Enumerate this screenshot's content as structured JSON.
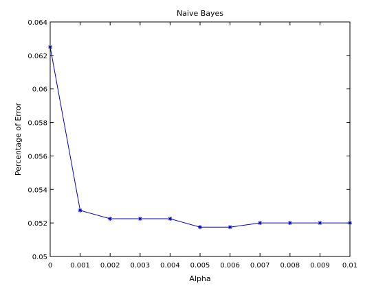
{
  "chart_data": {
    "type": "line",
    "title": "Naive Bayes",
    "xlabel": "Alpha",
    "ylabel": "Percentage of Error",
    "xlim": [
      0,
      0.01
    ],
    "ylim": [
      0.05,
      0.064
    ],
    "x_ticks": [
      0,
      0.001,
      0.002,
      0.003,
      0.004,
      0.005,
      0.006,
      0.007,
      0.008,
      0.009,
      0.01
    ],
    "x_tick_labels": [
      "0",
      "0.001",
      "0.002",
      "0.003",
      "0.004",
      "0.005",
      "0.006",
      "0.007",
      "0.008",
      "0.009",
      "0.01"
    ],
    "y_ticks": [
      0.05,
      0.052,
      0.054,
      0.056,
      0.058,
      0.06,
      0.062,
      0.064
    ],
    "y_tick_labels": [
      "0.05",
      "0.052",
      "0.054",
      "0.056",
      "0.058",
      "0.06",
      "0.062",
      "0.064"
    ],
    "grid": false,
    "marker": "asterisk",
    "series": [
      {
        "color": "#0000c8",
        "x": [
          0,
          0.001,
          0.002,
          0.003,
          0.004,
          0.005,
          0.006,
          0.007,
          0.008,
          0.009,
          0.01
        ],
        "values": [
          0.0625,
          0.05275,
          0.05225,
          0.05225,
          0.05225,
          0.05175,
          0.05175,
          0.052,
          0.052,
          0.052,
          0.052
        ]
      }
    ]
  }
}
